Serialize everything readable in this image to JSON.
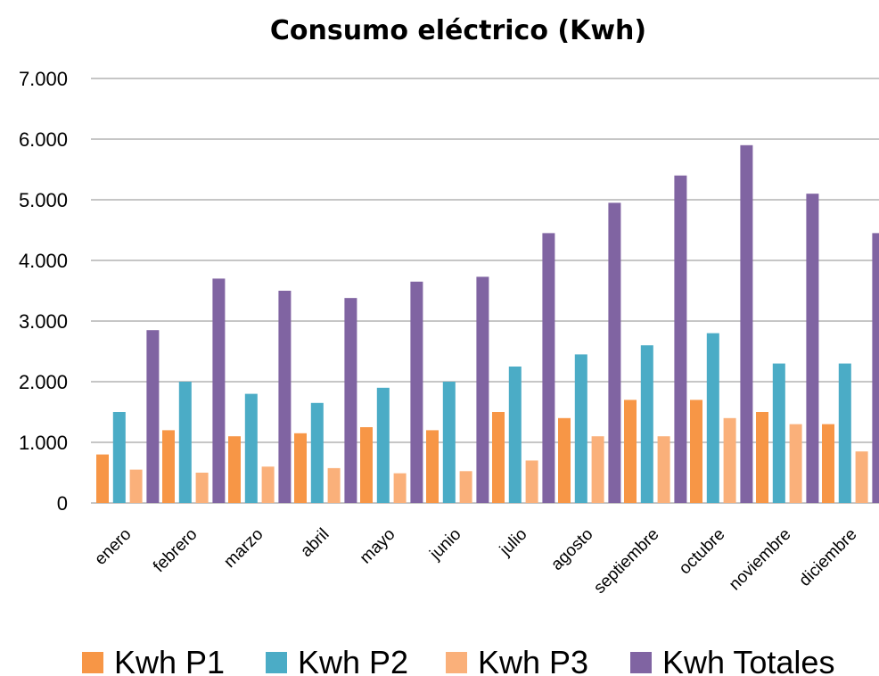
{
  "chart_data": {
    "type": "bar",
    "title": "Consumo eléctrico (Kwh)",
    "xlabel": "",
    "ylabel": "",
    "ylim": [
      0,
      7000
    ],
    "yticks": [
      0,
      1000,
      2000,
      3000,
      4000,
      5000,
      6000,
      7000
    ],
    "ytick_labels": [
      "0",
      "1.000",
      "2.000",
      "3.000",
      "4.000",
      "5.000",
      "6.000",
      "7.000"
    ],
    "grid": true,
    "legend_position": "bottom",
    "categories": [
      "enero",
      "febrero",
      "marzo",
      "abril",
      "mayo",
      "junio",
      "julio",
      "agosto",
      "septiembre",
      "octubre",
      "noviembre",
      "diciembre"
    ],
    "series": [
      {
        "name": "Kwh P1",
        "color": "#F79646",
        "values": [
          800,
          1200,
          1100,
          1150,
          1250,
          1200,
          1500,
          1400,
          1700,
          1700,
          1500,
          1300
        ]
      },
      {
        "name": "Kwh P2",
        "color": "#4BACC6",
        "values": [
          1500,
          2000,
          1800,
          1650,
          1900,
          2000,
          2250,
          2450,
          2600,
          2800,
          2300,
          2300
        ]
      },
      {
        "name": "Kwh P3",
        "color": "#FAB07A",
        "values": [
          550,
          500,
          600,
          575,
          490,
          525,
          700,
          1100,
          1100,
          1400,
          1300,
          850
        ]
      },
      {
        "name": "Kwh Totales",
        "color": "#8064A2",
        "values": [
          2850,
          3700,
          3500,
          3380,
          3650,
          3730,
          4450,
          4950,
          5400,
          5900,
          5100,
          4450
        ]
      }
    ]
  }
}
